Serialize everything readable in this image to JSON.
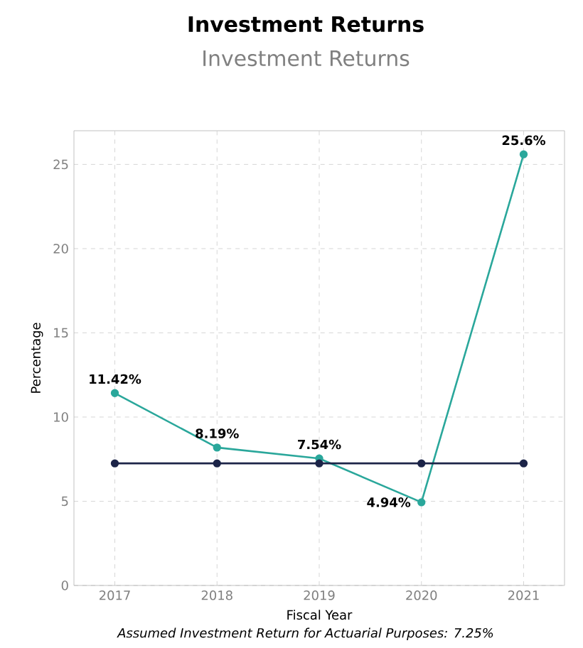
{
  "chart_data": {
    "type": "line",
    "title": "Investment Returns",
    "subtitle": "Investment Returns",
    "xlabel": "Fiscal Year",
    "ylabel": "Percentage",
    "annotations": [
      "Assumed Investment Return for Actuarial Purposes: 7.25%"
    ],
    "categories": [
      "2017",
      "2018",
      "2019",
      "2020",
      "2021"
    ],
    "series": [
      {
        "color": "#2aa79b",
        "values": [
          11.42,
          8.19,
          7.54,
          4.94,
          25.6
        ],
        "value_labels": [
          "11.42%",
          "8.19%",
          "7.54%",
          "4.94%",
          "25.6%"
        ]
      },
      {
        "color": "#1c2448",
        "values": [
          7.25,
          7.25,
          7.25,
          7.25,
          7.25
        ]
      }
    ],
    "ylim": [
      0,
      27
    ],
    "yticks": [
      0,
      5,
      10,
      15,
      20,
      25
    ],
    "grid": true,
    "marker": "circle",
    "line_style": "solid"
  }
}
